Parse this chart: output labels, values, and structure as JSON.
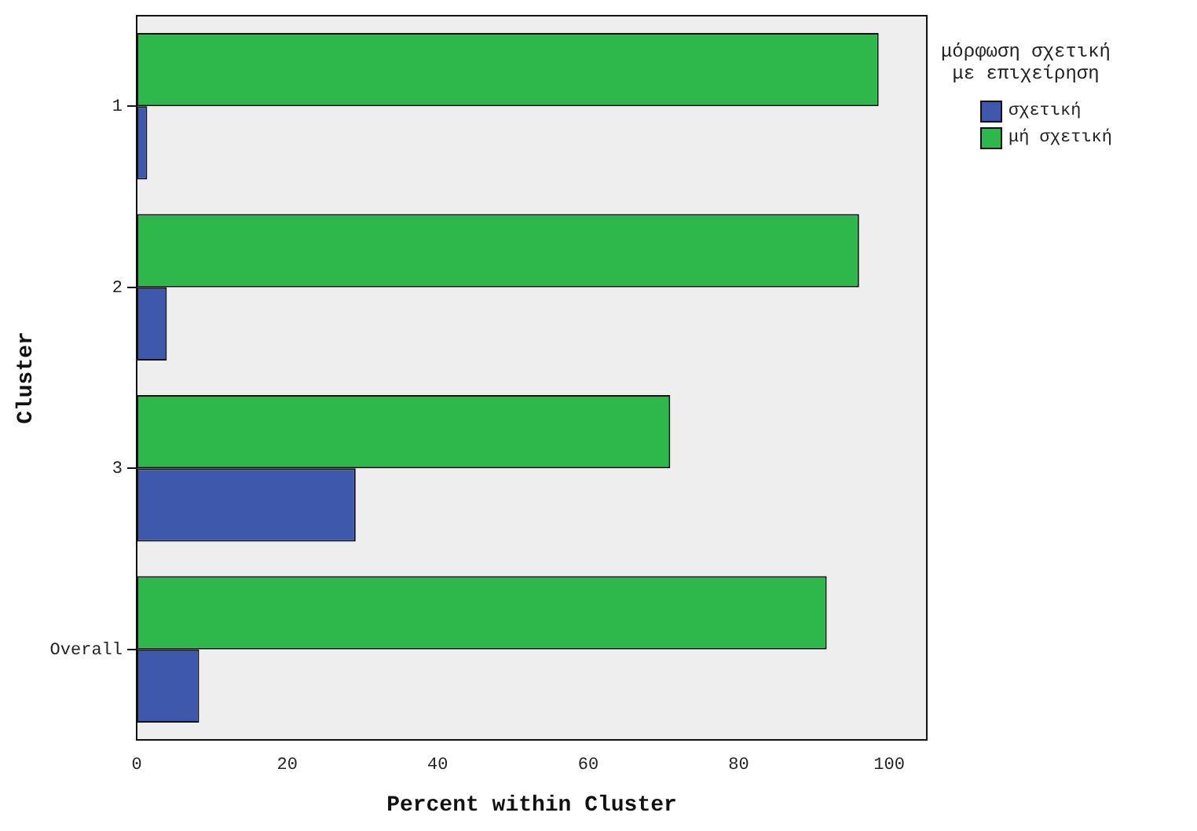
{
  "chart_data": {
    "type": "bar",
    "orientation": "horizontal",
    "xlabel": "Percent within Cluster",
    "ylabel": "Cluster",
    "legend_title": "μόρφωση σχετική\nμε επιχείρηση",
    "legend": "right",
    "grid": false,
    "categories": [
      "1",
      "2",
      "3",
      "Overall"
    ],
    "series": [
      {
        "name": "σχετική",
        "color": "#3e58ac",
        "values": [
          1.4,
          4.0,
          29.1,
          8.3
        ]
      },
      {
        "name": "μή σχετική",
        "color": "#2eb84b",
        "values": [
          98.6,
          96.0,
          70.9,
          91.7
        ]
      }
    ],
    "xlim": [
      0,
      105
    ],
    "xticks": [
      0,
      20,
      40,
      60,
      80,
      100
    ]
  }
}
